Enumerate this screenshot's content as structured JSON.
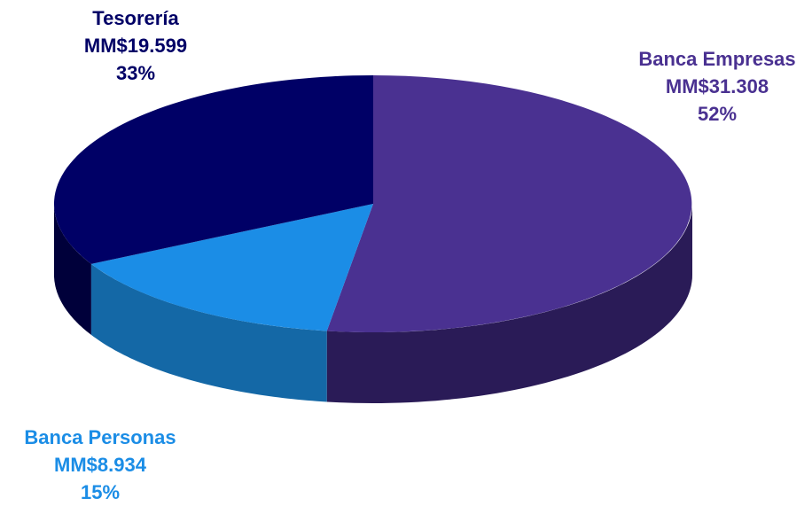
{
  "chart_data": {
    "type": "pie",
    "title": "",
    "slices": [
      {
        "label": "Banca Empresas",
        "amount": "MM$31.308",
        "percent": "52%",
        "value": 31308,
        "color": "#4a3191",
        "side_color": "#2a1b57"
      },
      {
        "label": "Banca Personas",
        "amount": "MM$8.934",
        "percent": "15%",
        "value": 8934,
        "color": "#1b8de6",
        "side_color": "#1468a6"
      },
      {
        "label": "Tesorería",
        "amount": "MM$19.599",
        "percent": "33%",
        "value": 19599,
        "color": "#000066",
        "side_color": "#00003a"
      }
    ]
  }
}
